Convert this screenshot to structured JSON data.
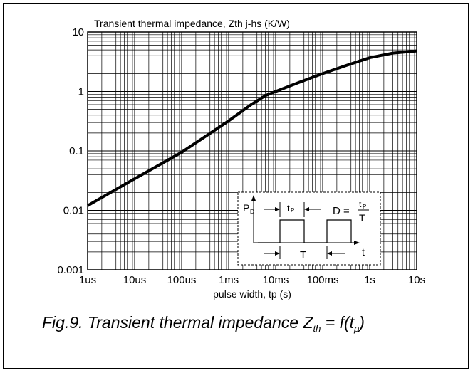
{
  "chart_data": {
    "type": "line",
    "title": "Transient thermal impedance, Zth j-hs (K/W)",
    "xlabel": "pulse width, tp (s)",
    "ylabel": "",
    "x_scale": "log",
    "y_scale": "log",
    "xlim": [
      1e-06,
      10
    ],
    "ylim": [
      0.001,
      10
    ],
    "x_tick_labels": [
      "1us",
      "10us",
      "100us",
      "1ms",
      "10ms",
      "100ms",
      "1s",
      "10s"
    ],
    "y_tick_labels": [
      "0.001",
      "0.01",
      "0.1",
      "1",
      "10"
    ],
    "grid": true,
    "series": [
      {
        "x": [
          1e-06,
          1e-05,
          0.0001,
          0.001,
          0.003,
          0.006,
          0.01,
          0.03,
          0.1,
          0.3,
          1,
          3,
          10
        ],
        "y": [
          0.012,
          0.034,
          0.095,
          0.32,
          0.6,
          0.85,
          1.0,
          1.4,
          2.0,
          2.7,
          3.7,
          4.4,
          4.8
        ]
      }
    ]
  },
  "inset": {
    "pd_label": "P",
    "pd_sub": "D",
    "tp_label": "t",
    "tp_sub": "P",
    "d_label": "D =",
    "d_num_t": "t",
    "d_num_sub": "P",
    "d_den": "T",
    "t_period": "T",
    "t_axis": "t"
  },
  "caption": {
    "prefix": "Fig.9.  Transient thermal impedance Z",
    "sub1": "th",
    "middle": " = f(t",
    "sub2": "p",
    "suffix": ")"
  }
}
